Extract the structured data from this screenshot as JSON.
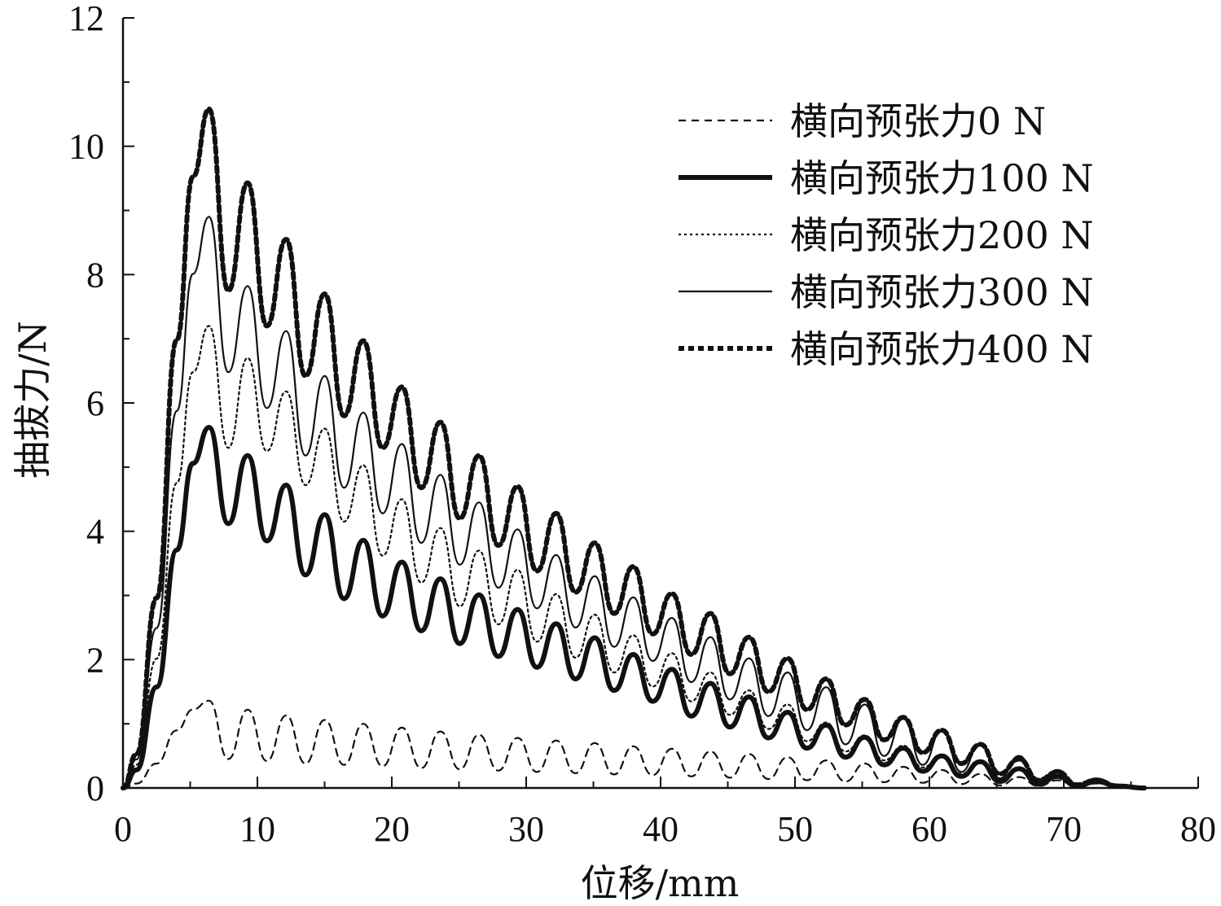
{
  "chart_data": {
    "type": "line",
    "title": "",
    "xlabel": "位移/mm",
    "ylabel": "抽拔力/N",
    "xlim": [
      0,
      80
    ],
    "ylim": [
      0,
      12
    ],
    "xticks": [
      "0",
      "10",
      "20",
      "30",
      "40",
      "50",
      "60",
      "70",
      "80"
    ],
    "yticks": [
      "0",
      "2",
      "4",
      "6",
      "8",
      "10",
      "12"
    ],
    "grid": false,
    "legend_position": "top-right",
    "series": [
      {
        "name": "横向预张力0 N",
        "line_style": "dashed-thin",
        "color": "#111111",
        "peaks": [
          1.36,
          1.22,
          1.13,
          1.06,
          1.0,
          0.94,
          0.88,
          0.83,
          0.78,
          0.74,
          0.7,
          0.65,
          0.61,
          0.57,
          0.53,
          0.48,
          0.43,
          0.38,
          0.33,
          0.28,
          0.22,
          0.17,
          0.12,
          0.07
        ],
        "troughs": [
          0.45,
          0.42,
          0.38,
          0.36,
          0.34,
          0.31,
          0.29,
          0.27,
          0.25,
          0.23,
          0.21,
          0.2,
          0.18,
          0.16,
          0.14,
          0.12,
          0.1,
          0.09,
          0.08,
          0.06,
          0.04,
          0.03,
          0.02
        ]
      },
      {
        "name": "横向预张力100 N",
        "line_style": "solid-thick",
        "color": "#111111",
        "peaks": [
          5.62,
          5.18,
          4.72,
          4.26,
          3.86,
          3.52,
          3.26,
          3.01,
          2.78,
          2.56,
          2.34,
          2.08,
          1.85,
          1.63,
          1.42,
          1.18,
          0.98,
          0.79,
          0.62,
          0.5,
          0.41,
          0.3,
          0.18,
          0.1
        ],
        "troughs": [
          4.12,
          3.85,
          3.32,
          2.95,
          2.68,
          2.45,
          2.25,
          2.05,
          1.88,
          1.7,
          1.52,
          1.35,
          1.12,
          0.95,
          0.78,
          0.62,
          0.48,
          0.36,
          0.26,
          0.18,
          0.1,
          0.06,
          0.03
        ]
      },
      {
        "name": "横向预张力200 N",
        "line_style": "dotted-thin",
        "color": "#111111",
        "peaks": [
          7.2,
          6.7,
          6.18,
          5.6,
          5.03,
          4.5,
          4.05,
          3.7,
          3.4,
          3.02,
          2.7,
          2.38,
          2.1,
          1.8,
          1.52,
          1.3,
          1.02,
          0.82,
          0.66,
          0.52,
          0.42,
          0.3,
          0.18,
          0.1
        ],
        "troughs": [
          5.3,
          5.25,
          4.72,
          4.15,
          3.62,
          3.2,
          2.83,
          2.55,
          2.28,
          2.03,
          1.8,
          1.58,
          1.35,
          1.14,
          0.92,
          0.73,
          0.57,
          0.43,
          0.32,
          0.22,
          0.13,
          0.07,
          0.03
        ]
      },
      {
        "name": "横向预张力300 N",
        "line_style": "solid-thin",
        "color": "#111111",
        "peaks": [
          8.9,
          7.82,
          7.12,
          6.42,
          5.85,
          5.36,
          4.88,
          4.45,
          4.03,
          3.63,
          3.3,
          2.97,
          2.65,
          2.35,
          2.02,
          1.8,
          1.57,
          1.3,
          1.08,
          0.9,
          0.7,
          0.5,
          0.28,
          0.15
        ],
        "troughs": [
          6.48,
          5.92,
          5.18,
          4.68,
          4.28,
          3.82,
          3.48,
          3.12,
          2.8,
          2.5,
          2.2,
          1.98,
          1.65,
          1.38,
          1.12,
          0.9,
          0.68,
          0.5,
          0.36,
          0.25,
          0.15,
          0.08,
          0.03
        ]
      },
      {
        "name": "横向预张力400 N",
        "line_style": "dotted-thick",
        "color": "#111111",
        "peaks": [
          10.58,
          9.43,
          8.55,
          7.7,
          6.97,
          6.25,
          5.7,
          5.18,
          4.7,
          4.28,
          3.82,
          3.45,
          3.03,
          2.72,
          2.35,
          2.02,
          1.7,
          1.38,
          1.1,
          0.9,
          0.68,
          0.45,
          0.25,
          0.12
        ],
        "troughs": [
          7.75,
          7.2,
          6.42,
          5.8,
          5.3,
          4.68,
          4.2,
          3.78,
          3.38,
          3.05,
          2.72,
          2.4,
          2.08,
          1.78,
          1.5,
          1.22,
          0.98,
          0.75,
          0.55,
          0.38,
          0.22,
          0.12,
          0.05
        ]
      }
    ]
  }
}
